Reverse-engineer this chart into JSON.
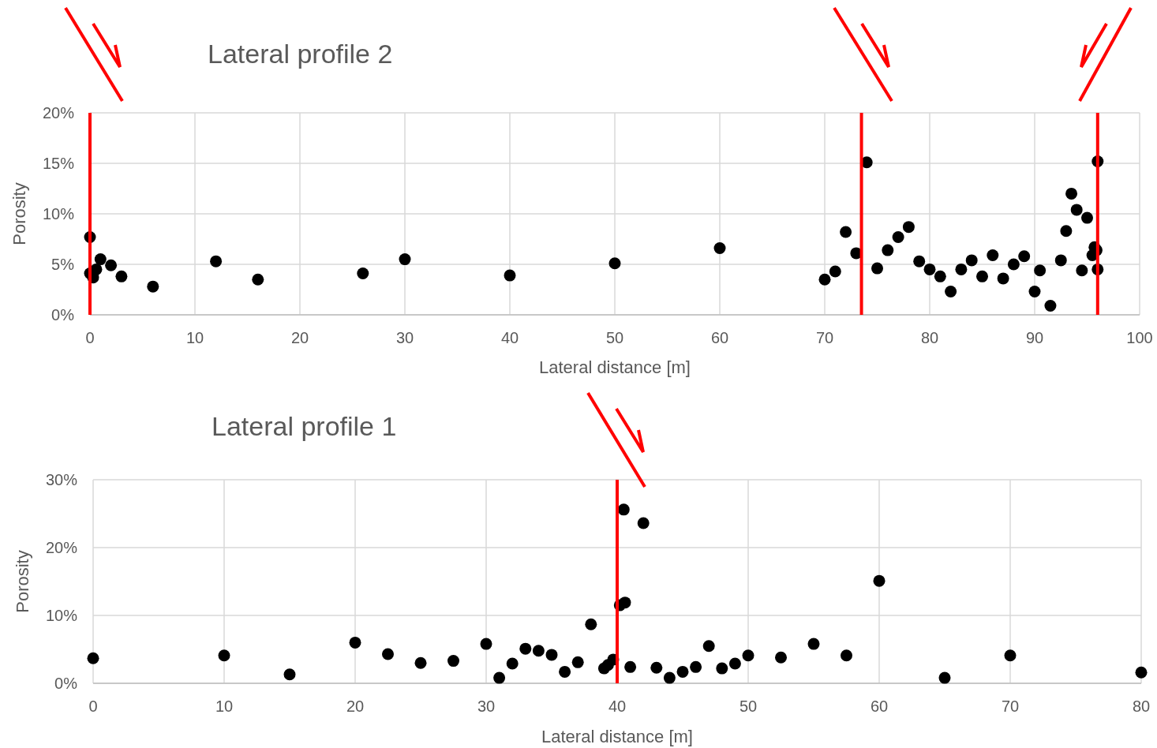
{
  "chart_data": [
    {
      "type": "scatter",
      "title": "Lateral profile 2",
      "xlabel": "Lateral distance [m]",
      "ylabel": "Porosity",
      "xlim": [
        0,
        100
      ],
      "xticks": [
        0,
        10,
        20,
        30,
        40,
        50,
        60,
        70,
        80,
        90,
        100
      ],
      "ylim": [
        0,
        20
      ],
      "yticks": [
        {
          "value": 0,
          "label": "0%"
        },
        {
          "value": 5,
          "label": "5%"
        },
        {
          "value": 10,
          "label": "10%"
        },
        {
          "value": 15,
          "label": "15%"
        },
        {
          "value": 20,
          "label": "20%"
        }
      ],
      "grid": true,
      "marker": "circle",
      "series": [
        {
          "color": "#000000",
          "x": [
            0,
            0,
            0.3,
            0.6,
            1,
            2,
            3,
            6,
            12,
            16,
            26,
            30,
            40,
            50,
            60,
            70,
            71,
            72,
            73,
            74,
            75,
            76,
            77,
            78,
            79,
            80,
            81,
            82,
            83,
            84,
            85,
            86,
            87,
            88,
            89,
            90,
            90.5,
            91.5,
            92.5,
            93,
            93.5,
            94,
            94.5,
            95,
            95.5,
            95.7,
            95.9,
            96,
            96
          ],
          "values": [
            7.7,
            4.1,
            3.7,
            4.5,
            5.5,
            4.9,
            3.8,
            2.8,
            5.3,
            3.5,
            4.1,
            5.5,
            3.9,
            5.1,
            6.6,
            3.5,
            4.3,
            8.2,
            6.1,
            15.1,
            4.6,
            6.4,
            7.7,
            8.7,
            5.3,
            4.5,
            3.8,
            2.3,
            4.5,
            5.4,
            3.8,
            5.9,
            3.6,
            5.0,
            5.8,
            2.3,
            4.4,
            0.9,
            5.4,
            8.3,
            12.0,
            10.4,
            4.4,
            9.6,
            5.9,
            6.7,
            6.4,
            15.2,
            4.5
          ]
        }
      ],
      "ref_lines": [
        {
          "axis": "x",
          "value": 0,
          "color": "#ff0000"
        },
        {
          "axis": "x",
          "value": 73.5,
          "color": "#ff0000"
        },
        {
          "axis": "x",
          "value": 96,
          "color": "#ff0000"
        }
      ]
    },
    {
      "type": "scatter",
      "title": "Lateral profile 1",
      "xlabel": "Lateral distance [m]",
      "ylabel": "Porosity",
      "xlim": [
        0,
        80
      ],
      "xticks": [
        0,
        10,
        20,
        30,
        40,
        50,
        60,
        70,
        80
      ],
      "ylim": [
        0,
        30
      ],
      "yticks": [
        {
          "value": 0,
          "label": "0%"
        },
        {
          "value": 10,
          "label": "10%"
        },
        {
          "value": 20,
          "label": "20%"
        },
        {
          "value": 30,
          "label": "30%"
        }
      ],
      "grid": true,
      "marker": "circle",
      "series": [
        {
          "color": "#000000",
          "x": [
            0,
            10,
            15,
            20,
            22.5,
            25,
            27.5,
            30,
            31,
            32,
            33,
            34,
            35,
            36,
            37,
            38,
            39,
            39.3,
            39.7,
            40.2,
            40.6,
            40.5,
            42,
            41,
            43,
            44,
            45,
            46,
            47,
            48,
            49,
            50,
            52.5,
            55,
            57.5,
            60,
            65,
            70,
            80
          ],
          "values": [
            3.7,
            4.1,
            1.3,
            6.0,
            4.3,
            3.0,
            3.3,
            5.8,
            0.8,
            2.9,
            5.1,
            4.8,
            4.2,
            1.7,
            3.1,
            8.7,
            2.2,
            2.7,
            3.5,
            11.5,
            11.9,
            25.6,
            23.6,
            2.4,
            2.3,
            0.8,
            1.7,
            2.4,
            5.5,
            2.2,
            2.9,
            4.1,
            3.8,
            5.8,
            4.1,
            15.1,
            0.8,
            4.1,
            1.6
          ]
        }
      ],
      "ref_lines": [
        {
          "axis": "x",
          "value": 40,
          "color": "#ff0000"
        }
      ]
    }
  ]
}
